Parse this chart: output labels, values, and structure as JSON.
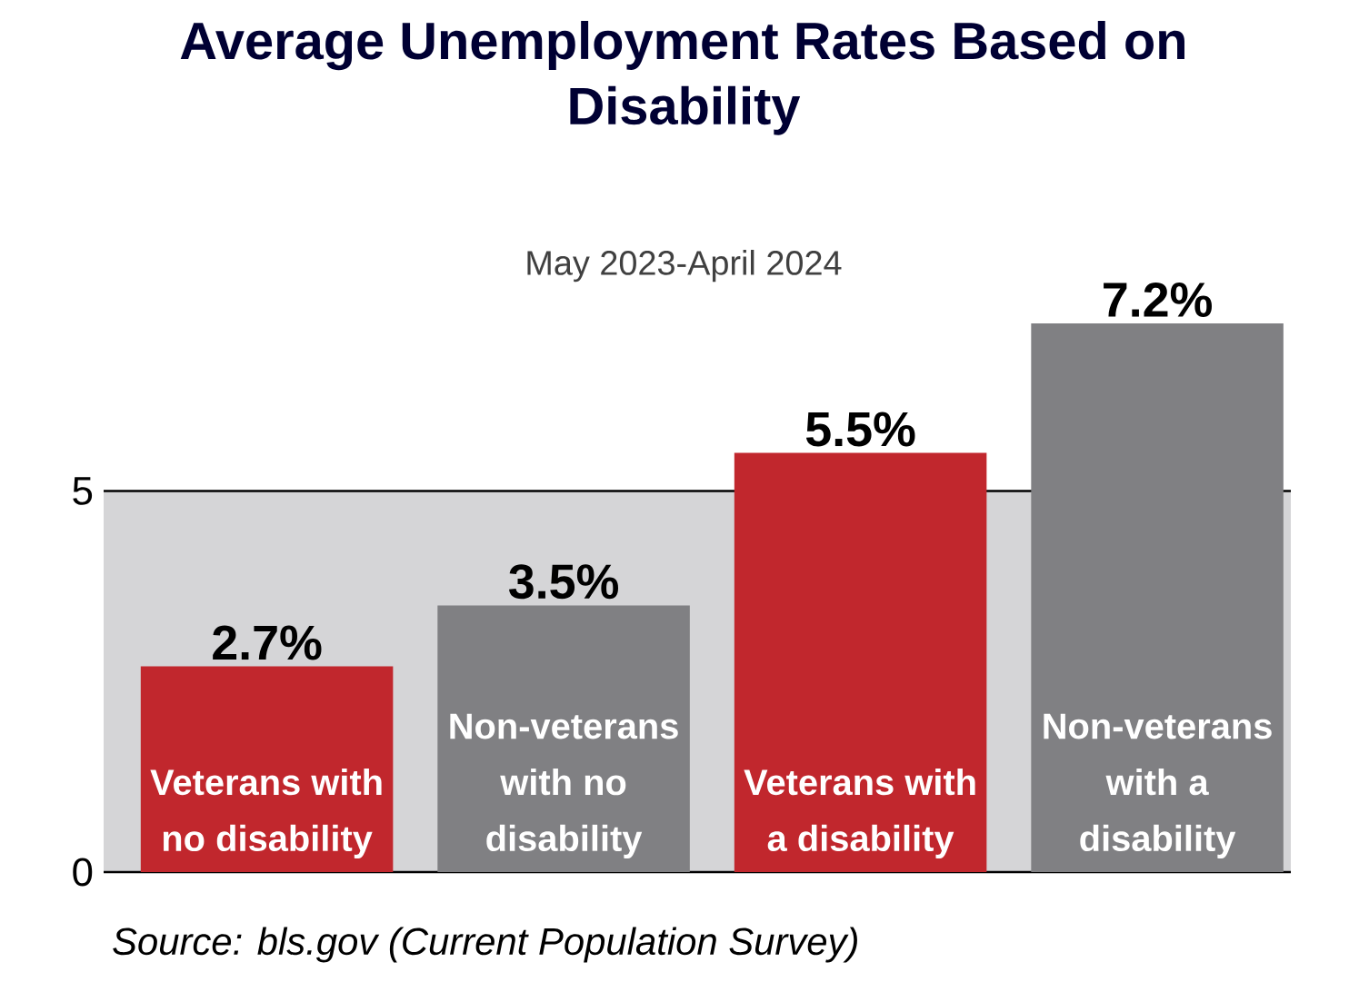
{
  "chart_data": {
    "type": "bar",
    "title": "Average Unemployment Rates Based on Disability",
    "subtitle": "May 2023-April 2024",
    "categories": [
      "Veterans with no disability",
      "Non-veterans with no disability",
      "Veterans with a disability",
      "Non-veterans with a disability"
    ],
    "values": [
      2.7,
      3.5,
      5.5,
      7.2
    ],
    "colors": [
      "#c1272d",
      "#808083",
      "#c1272d",
      "#808083"
    ],
    "ylim": [
      0,
      7.2
    ],
    "yticks": [
      0,
      5
    ],
    "grid": "y",
    "data_labels": true,
    "value_labels": [
      "2.7%",
      "3.5%",
      "5.5%",
      "7.2%"
    ],
    "bands": [
      {
        "axis": "y",
        "from": 0,
        "to": 5,
        "color": "#d5d5d7"
      }
    ],
    "annotations": [
      "Source: bls.gov (Current Population Survey)"
    ]
  }
}
